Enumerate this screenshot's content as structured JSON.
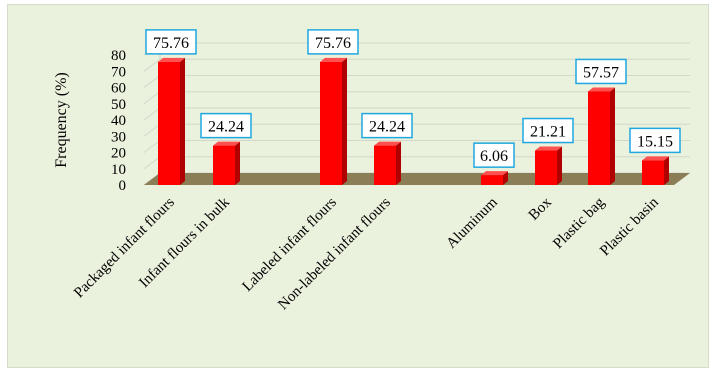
{
  "chart_data": {
    "type": "bar",
    "ylabel": "Frequency (%)",
    "xlabel": "",
    "ylim": [
      0,
      80
    ],
    "yticks": [
      "0",
      "10",
      "20",
      "30",
      "40",
      "50",
      "60",
      "70",
      "80"
    ],
    "grid": true,
    "legend": "none",
    "bar_color": "#ff0000",
    "floor_color": "#8b7d55",
    "label_border_color": "#1fa8e0",
    "categories": [
      "Packaged infant flours",
      "Infant flours in bulk",
      "Labeled infant flours",
      "Non-labeled infant flours",
      "Aluminum",
      "Box",
      "Plastic bag",
      "Plastic basin"
    ],
    "values": [
      75.76,
      24.24,
      75.76,
      24.24,
      6.06,
      21.21,
      57.57,
      15.15
    ],
    "value_labels": [
      "75.76",
      "24.24",
      "75.76",
      "24.24",
      "6.06",
      "21.21",
      "57.57",
      "15.15"
    ]
  }
}
